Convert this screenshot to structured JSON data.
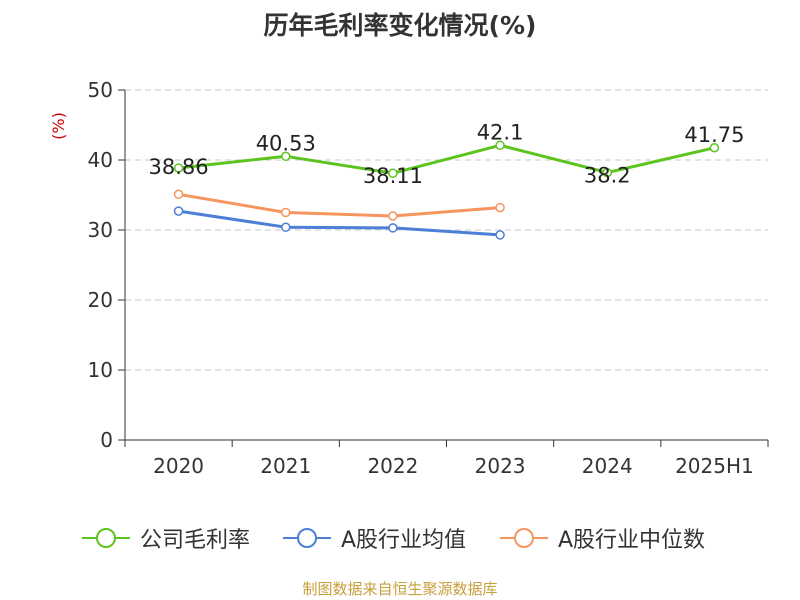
{
  "title": "历年毛利率变化情况(%)",
  "source": "制图数据来自恒生聚源数据库",
  "chart_data": {
    "type": "line",
    "categories": [
      "2020",
      "2021",
      "2022",
      "2023",
      "2024",
      "2025H1"
    ],
    "y_unit_label": "(%)",
    "ylim": [
      0,
      50
    ],
    "yticks": [
      0,
      10,
      20,
      30,
      40,
      50
    ],
    "grid": true,
    "legend_position": "bottom",
    "series": [
      {
        "name": "公司毛利率",
        "color": "#5dc41f",
        "values": [
          38.86,
          40.53,
          38.11,
          42.1,
          38.2,
          41.75
        ],
        "labels": [
          "38.86",
          "40.53",
          "38.11",
          "42.1",
          "38.2",
          "41.75"
        ]
      },
      {
        "name": "A股行业均值",
        "color": "#4d7fd6",
        "values": [
          32.7,
          30.4,
          30.3,
          29.3,
          null,
          null
        ]
      },
      {
        "name": "A股行业中位数",
        "color": "#f7955e",
        "values": [
          35.1,
          32.5,
          32.0,
          33.2,
          null,
          null
        ]
      }
    ]
  }
}
